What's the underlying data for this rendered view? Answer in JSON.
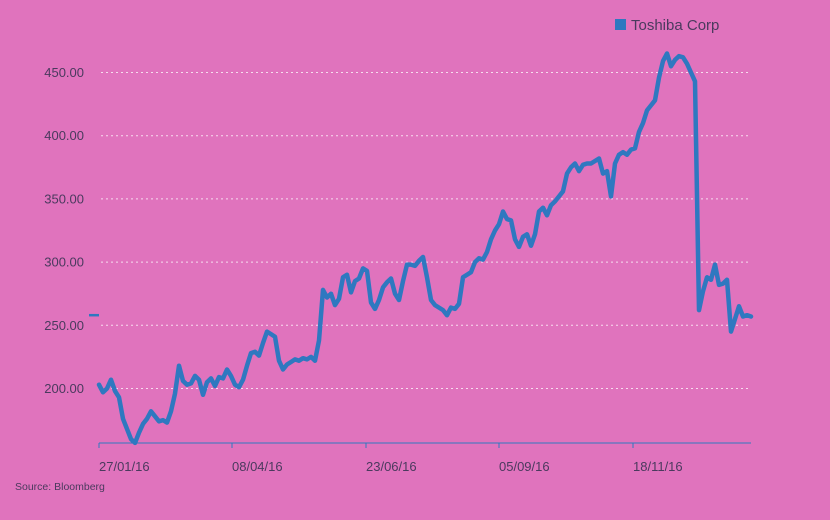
{
  "chart_data": {
    "type": "line",
    "title": "",
    "xlabel": "",
    "ylabel": "",
    "source": "Source: Bloomberg",
    "legend": {
      "placement": "top-right"
    },
    "grid": {
      "y": true,
      "x": false,
      "style": "dotted"
    },
    "x_tick_labels": [
      "27/01/16",
      "08/04/16",
      "23/06/16",
      "05/09/16",
      "18/11/16"
    ],
    "y_tick_labels": [
      "200.00",
      "250.00",
      "300.00",
      "350.00",
      "400.00",
      "450.00"
    ],
    "ylim": [
      155,
      470
    ],
    "last_value_marker": 258,
    "series": [
      {
        "name": "Toshiba Corp",
        "color": "#2f78c0",
        "y": [
          203,
          197,
          200,
          207,
          198,
          193,
          176,
          168,
          160,
          157,
          165,
          172,
          176,
          182,
          178,
          174,
          175,
          173,
          182,
          196,
          218,
          206,
          203,
          204,
          210,
          207,
          195,
          205,
          208,
          202,
          209,
          208,
          215,
          210,
          203,
          201,
          207,
          218,
          228,
          229,
          226,
          236,
          245,
          243,
          241,
          222,
          215,
          219,
          221,
          223,
          222,
          224,
          223,
          225,
          222,
          238,
          278,
          272,
          275,
          266,
          271,
          288,
          290,
          276,
          285,
          287,
          295,
          293,
          268,
          263,
          270,
          280,
          284,
          287,
          275,
          270,
          285,
          298,
          298,
          297,
          301,
          304,
          288,
          270,
          266,
          264,
          262,
          258,
          264,
          263,
          267,
          288,
          290,
          292,
          300,
          303,
          302,
          308,
          318,
          325,
          330,
          340,
          334,
          333,
          318,
          312,
          320,
          322,
          313,
          322,
          340,
          343,
          337,
          345,
          348,
          352,
          356,
          370,
          375,
          378,
          372,
          377,
          378,
          378,
          380,
          382,
          370,
          372,
          352,
          378,
          385,
          387,
          385,
          389,
          390,
          403,
          410,
          420,
          424,
          428,
          446,
          459,
          465,
          455,
          460,
          463,
          462,
          457,
          450,
          443,
          262,
          277,
          288,
          286,
          298,
          282,
          283,
          286,
          245,
          255,
          265,
          257,
          258,
          257
        ]
      }
    ]
  }
}
